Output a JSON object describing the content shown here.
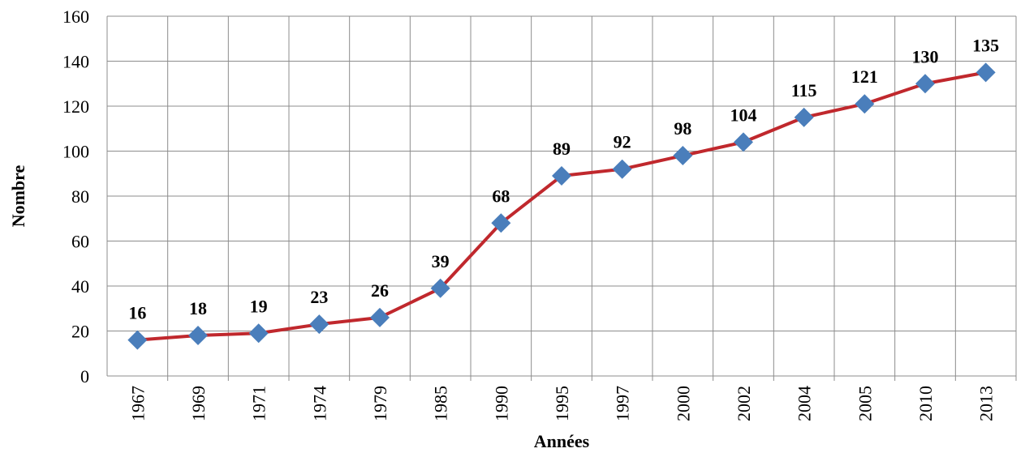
{
  "chart_data": {
    "type": "line",
    "x_label": "Années",
    "y_label": "Nombre",
    "categories": [
      "1967",
      "1969",
      "1971",
      "1974",
      "1979",
      "1985",
      "1990",
      "1995",
      "1997",
      "2000",
      "2002",
      "2004",
      "2005",
      "2010",
      "2013"
    ],
    "series": [
      {
        "name": "Nombre",
        "line_color": "#c0282d",
        "marker_color": "#4a7ebb",
        "values": [
          16,
          18,
          19,
          23,
          26,
          39,
          68,
          89,
          92,
          98,
          104,
          115,
          121,
          130,
          135
        ]
      }
    ],
    "ylim": [
      0,
      160
    ],
    "yticks": [
      0,
      20,
      40,
      60,
      80,
      100,
      120,
      140,
      160
    ],
    "grid": true
  }
}
